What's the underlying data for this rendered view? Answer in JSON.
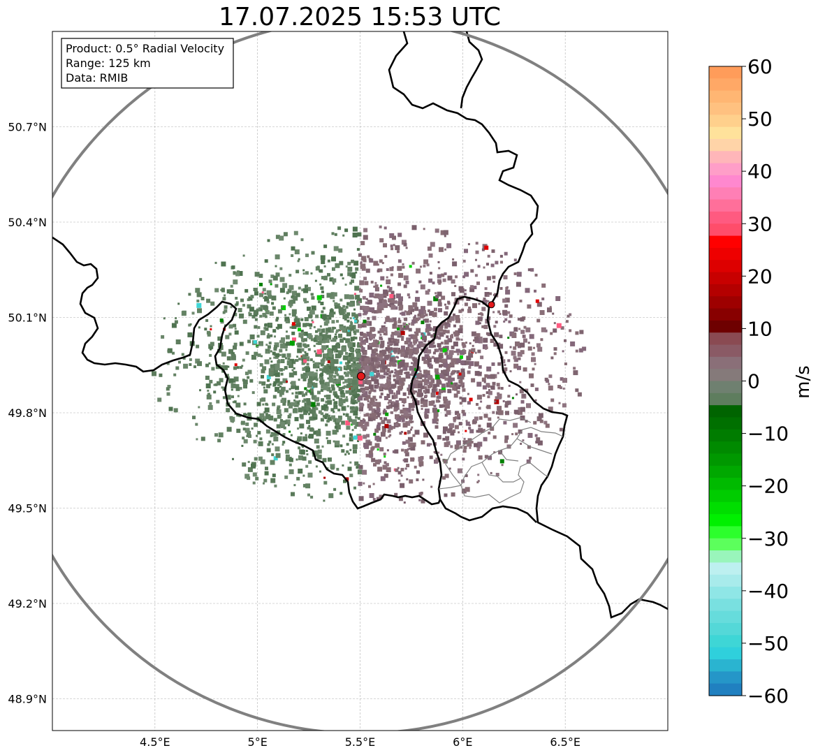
{
  "title": "17.07.2025 15:53 UTC",
  "info_box": {
    "product": "Product: 0.5° Radial Velocity",
    "range": "Range: 125 km",
    "data": "Data: RMIB"
  },
  "map": {
    "lon_ticks": [
      {
        "value": 4.5,
        "label": "4.5°E"
      },
      {
        "value": 5.0,
        "label": "5°E"
      },
      {
        "value": 5.5,
        "label": "5.5°E"
      },
      {
        "value": 6.0,
        "label": "6°E"
      },
      {
        "value": 6.5,
        "label": "6.5°E"
      }
    ],
    "lat_ticks": [
      {
        "value": 50.7,
        "label": "50.7°N"
      },
      {
        "value": 50.4,
        "label": "50.4°N"
      },
      {
        "value": 50.1,
        "label": "50.1°N"
      },
      {
        "value": 49.8,
        "label": "49.8°N"
      },
      {
        "value": 49.5,
        "label": "49.5°N"
      },
      {
        "value": 49.2,
        "label": "49.2°N"
      },
      {
        "value": 48.9,
        "label": "48.9°N"
      }
    ],
    "lon_range": [
      4.0,
      7.0
    ],
    "lat_range": [
      48.8,
      51.0
    ],
    "grid": true,
    "radar_site": {
      "lon": 5.505,
      "lat": 49.915,
      "color": "#e31a1c"
    },
    "secondary_site": {
      "lon": 6.14,
      "lat": 50.14,
      "color": "#e31a1c"
    },
    "range_ring_km": 125,
    "range_ring_color": "#808080"
  },
  "colorbar": {
    "label": "m/s",
    "min": -60,
    "max": 60,
    "ticks": [
      60,
      50,
      40,
      30,
      20,
      10,
      0,
      -10,
      -20,
      -30,
      -40,
      -50,
      -60
    ],
    "tick_labels": [
      "60",
      "50",
      "40",
      "30",
      "20",
      "10",
      "0",
      "−10",
      "−20",
      "−30",
      "−40",
      "−50",
      "−60"
    ],
    "colors_top_to_bottom": [
      "#ff9c5a",
      "#ffa866",
      "#ffb673",
      "#ffc180",
      "#ffd08c",
      "#ffe29b",
      "#ffd4a8",
      "#ffb6b9",
      "#ff9ec8",
      "#ff88cf",
      "#ff7fb5",
      "#ff6f9a",
      "#ff5a80",
      "#ff4d6a",
      "#ff0000",
      "#ee0000",
      "#dd0000",
      "#c80000",
      "#b40000",
      "#9e0000",
      "#880000",
      "#6e0000",
      "#8a4a52",
      "#8a5a65",
      "#8a6f78",
      "#857a7a",
      "#6f8070",
      "#5e7d5e",
      "#006400",
      "#007000",
      "#007c00",
      "#008a00",
      "#009800",
      "#00a800",
      "#00ba00",
      "#00cc00",
      "#00de00",
      "#00f000",
      "#2cff2c",
      "#5cff5c",
      "#99f5bb",
      "#bdf0f0",
      "#a8ebeb",
      "#8fe6e6",
      "#79e0e0",
      "#66dcdc",
      "#54d8d8",
      "#3ed6d6",
      "#2fd0dc",
      "#2ab4d0",
      "#2596c8",
      "#2080c0"
    ]
  }
}
